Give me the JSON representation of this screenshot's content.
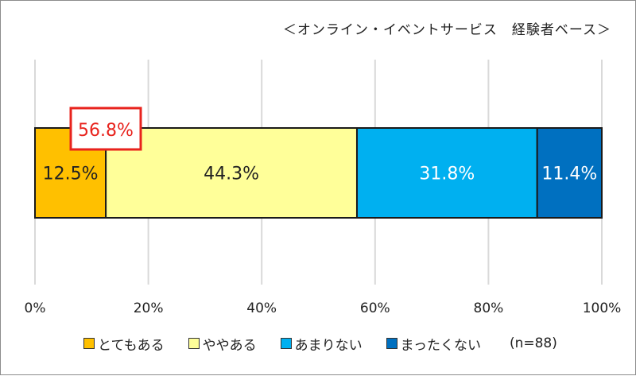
{
  "subtitle": "＜オンライン・イベントサービス　経験者ベース＞",
  "n_label": "(n=88)",
  "highlight": {
    "label": "56.8%",
    "color": "#e8231d"
  },
  "chart_data": {
    "type": "bar",
    "orientation": "horizontal",
    "stacked": true,
    "categories": [
      ""
    ],
    "series": [
      {
        "name": "とてもある",
        "values": [
          12.5
        ],
        "label": "12.5%",
        "color": "#ffc000",
        "label_color": "#222222"
      },
      {
        "name": "ややある",
        "values": [
          44.3
        ],
        "label": "44.3%",
        "color": "#ffff99",
        "label_color": "#222222"
      },
      {
        "name": "あまりない",
        "values": [
          31.8
        ],
        "label": "31.8%",
        "color": "#00b0f0",
        "label_color": "#ffffff"
      },
      {
        "name": "まったくない",
        "values": [
          11.4
        ],
        "label": "11.4%",
        "color": "#0070c0",
        "label_color": "#ffffff"
      }
    ],
    "xlim": [
      0,
      100
    ],
    "xticks": [
      "0%",
      "20%",
      "40%",
      "60%",
      "80%",
      "100%"
    ],
    "grid": true,
    "legend_position": "bottom"
  }
}
